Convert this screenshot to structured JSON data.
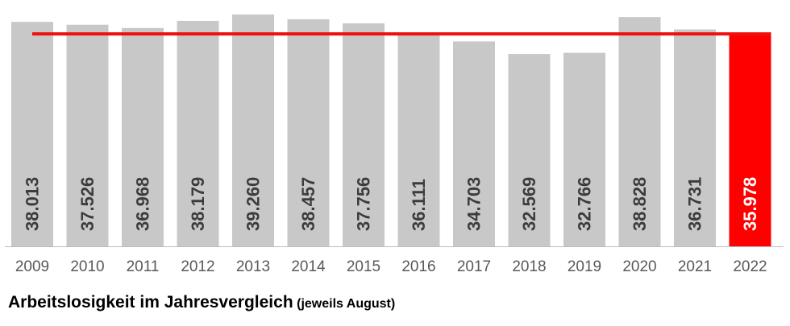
{
  "colors": {
    "bar": "#c8c8c8",
    "highlight": "#ff0000",
    "value_label": "#3c3c3c",
    "value_label_highlight": "#ffffff",
    "year_label": "#595959",
    "axis": "#bdbdbd",
    "reference_line": "#ee1111"
  },
  "caption": {
    "title": "Arbeitslosigkeit im Jahresvergleich",
    "note": "(jeweils August)"
  },
  "chart_data": {
    "type": "bar",
    "categories": [
      "2009",
      "2010",
      "2011",
      "2012",
      "2013",
      "2014",
      "2015",
      "2016",
      "2017",
      "2018",
      "2019",
      "2020",
      "2021",
      "2022"
    ],
    "values": [
      38013,
      37526,
      36968,
      38179,
      39260,
      38457,
      37756,
      36111,
      34703,
      32569,
      32766,
      38828,
      36731,
      35978
    ],
    "value_labels": [
      "38.013",
      "37.526",
      "36.968",
      "38.179",
      "39.260",
      "38.457",
      "37.756",
      "36.111",
      "34.703",
      "32.569",
      "32.766",
      "38.828",
      "36.731",
      "35.978"
    ],
    "highlight_index": 13,
    "reference_line_value": 35978,
    "grid": false,
    "legend": "none",
    "title": "",
    "xlabel": "",
    "ylabel": ""
  }
}
